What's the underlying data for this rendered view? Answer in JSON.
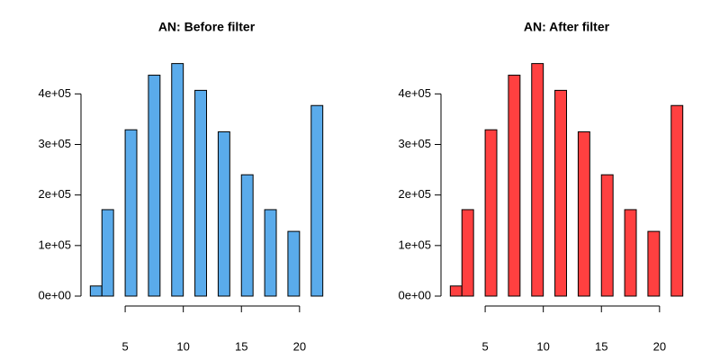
{
  "chart_data": [
    {
      "type": "histogram",
      "title": "AN: Before filter",
      "bins": [
        2,
        3,
        4,
        5,
        6,
        7,
        8,
        9,
        10,
        11,
        12,
        13,
        14,
        15,
        16,
        17,
        18,
        19,
        20,
        21,
        22
      ],
      "values": [
        20000,
        171000,
        0,
        329000,
        0,
        437000,
        0,
        460000,
        0,
        407000,
        0,
        325000,
        0,
        240000,
        0,
        171000,
        0,
        128000,
        0,
        377000
      ],
      "color": "#5aabeb",
      "xlim": [
        1.2,
        22.8
      ],
      "xticks": [
        5,
        10,
        15,
        20
      ],
      "ylim": [
        0,
        470000
      ],
      "yticks": [
        {
          "value": 0,
          "label": "0e+00"
        },
        {
          "value": 100000,
          "label": "1e+05"
        },
        {
          "value": 200000,
          "label": "2e+05"
        },
        {
          "value": 300000,
          "label": "3e+05"
        },
        {
          "value": 400000,
          "label": "4e+05"
        }
      ]
    },
    {
      "type": "histogram",
      "title": "AN: After filter",
      "bins": [
        2,
        3,
        4,
        5,
        6,
        7,
        8,
        9,
        10,
        11,
        12,
        13,
        14,
        15,
        16,
        17,
        18,
        19,
        20,
        21,
        22
      ],
      "values": [
        20000,
        171000,
        0,
        329000,
        0,
        437000,
        0,
        460000,
        0,
        407000,
        0,
        325000,
        0,
        240000,
        0,
        171000,
        0,
        128000,
        0,
        377000
      ],
      "color": "#ff4040",
      "xlim": [
        1.2,
        22.8
      ],
      "xticks": [
        5,
        10,
        15,
        20
      ],
      "ylim": [
        0,
        470000
      ],
      "yticks": [
        {
          "value": 0,
          "label": "0e+00"
        },
        {
          "value": 100000,
          "label": "1e+05"
        },
        {
          "value": 200000,
          "label": "2e+05"
        },
        {
          "value": 300000,
          "label": "3e+05"
        },
        {
          "value": 400000,
          "label": "4e+05"
        }
      ]
    }
  ]
}
